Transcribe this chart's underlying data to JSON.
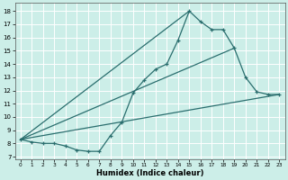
{
  "xlabel": "Humidex (Indice chaleur)",
  "bg_color": "#cceee8",
  "grid_color": "#ffffff",
  "line_color": "#2a6e6e",
  "xlim": [
    -0.5,
    23.5
  ],
  "ylim": [
    6.8,
    18.6
  ],
  "xticks": [
    0,
    1,
    2,
    3,
    4,
    5,
    6,
    7,
    8,
    9,
    10,
    11,
    12,
    13,
    14,
    15,
    16,
    17,
    18,
    19,
    20,
    21,
    22,
    23
  ],
  "yticks": [
    7,
    8,
    9,
    10,
    11,
    12,
    13,
    14,
    15,
    16,
    17,
    18
  ],
  "curve_x": [
    0,
    1,
    2,
    3,
    4,
    5,
    6,
    7,
    8,
    9,
    10,
    11,
    12,
    13,
    14,
    15,
    16,
    17,
    18,
    19,
    20,
    21,
    22,
    23
  ],
  "curve_y": [
    8.3,
    8.1,
    8.0,
    8.0,
    7.8,
    7.5,
    7.4,
    7.4,
    8.6,
    9.6,
    11.8,
    12.8,
    13.6,
    14.0,
    15.8,
    18.0,
    17.2,
    16.6,
    16.6,
    15.2,
    13.0,
    11.9,
    11.7,
    11.7
  ],
  "fan_lines": [
    {
      "x": [
        0,
        15
      ],
      "y": [
        8.3,
        18.0
      ]
    },
    {
      "x": [
        0,
        19
      ],
      "y": [
        8.3,
        15.2
      ]
    },
    {
      "x": [
        0,
        23
      ],
      "y": [
        8.3,
        11.7
      ]
    }
  ]
}
